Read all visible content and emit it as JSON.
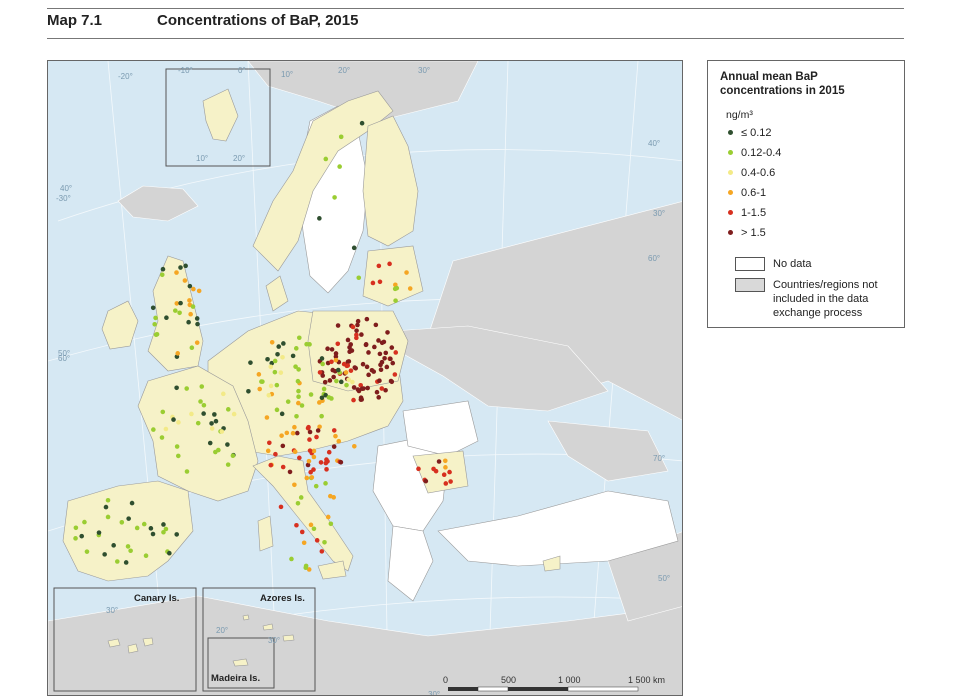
{
  "header": {
    "map_number": "Map 7.1",
    "title": "Concentrations of BaP, 2015"
  },
  "legend": {
    "title": "Annual mean BaP concentrations in 2015",
    "unit": "ng/m³",
    "classes": [
      {
        "label": "≤ 0.12",
        "color": "#2f4f2f"
      },
      {
        "label": "0.12-0.4",
        "color": "#9acd32"
      },
      {
        "label": "0.4-0.6",
        "color": "#f3ea87"
      },
      {
        "label": "0.6-1",
        "color": "#f5a623"
      },
      {
        "label": "1-1.5",
        "color": "#d7301f"
      },
      {
        "label": "> 1.5",
        "color": "#7f1d1d"
      }
    ],
    "no_data": {
      "label": "No data",
      "color": "#ffffff"
    },
    "excluded": {
      "label": "Countries/regions not included in the data exchange process",
      "color": "#d9d9d9"
    }
  },
  "map": {
    "colors": {
      "sea": "#d6e8f3",
      "reporting": "#f6f2c8",
      "no_data": "#ffffff",
      "excluded": "#d4d4d4"
    },
    "graticule_labels": [
      "-30°",
      "-20°",
      "-10°",
      "0°",
      "10°",
      "20°",
      "30°",
      "40°",
      "50°",
      "60°",
      "70°",
      "60°",
      "50°",
      "40°",
      "30°",
      "10°",
      "20°",
      "30°",
      "20°",
      "30°",
      "30°"
    ],
    "insets": {
      "canary": "Canary Is.",
      "azores": "Azores Is.",
      "madeira": "Madeira Is."
    },
    "scale_bar": {
      "labels": [
        "0",
        "500",
        "1 000",
        "1 500 km"
      ]
    }
  }
}
